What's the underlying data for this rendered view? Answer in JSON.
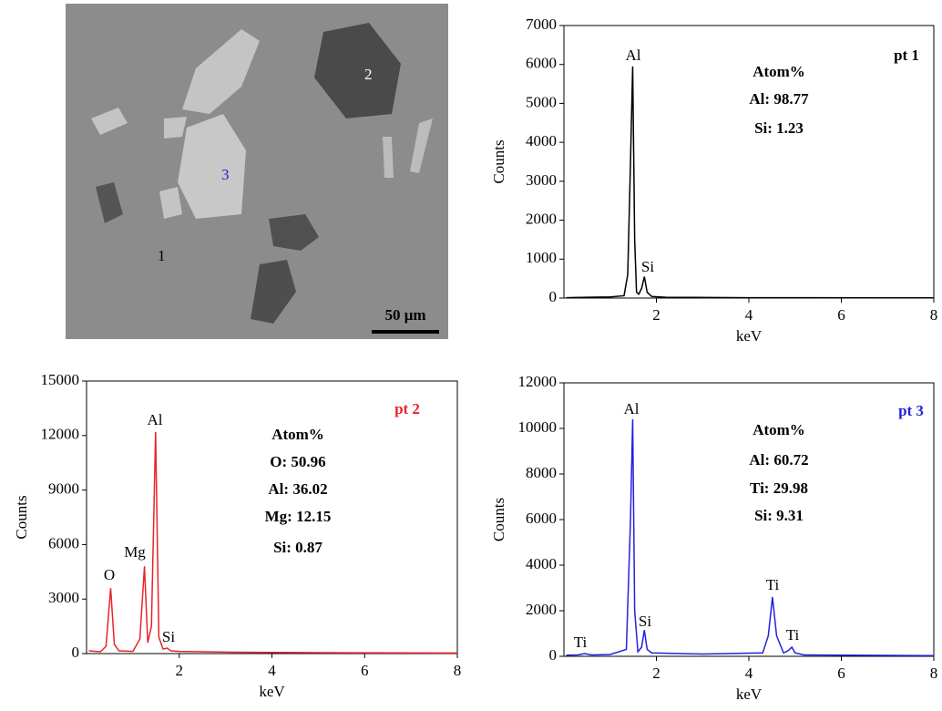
{
  "image": {
    "labels": [
      "1",
      "2",
      "3"
    ],
    "scale_bar": "50 μm"
  },
  "chart_data": [
    {
      "type": "line",
      "x_label": "keV",
      "y_label": "Counts",
      "color": "#000000",
      "x": [
        0.05,
        0.5,
        1.0,
        1.3,
        1.38,
        1.44,
        1.487,
        1.53,
        1.57,
        1.62,
        1.68,
        1.74,
        1.8,
        1.9,
        2.2,
        4.0,
        8.0
      ],
      "values": [
        10,
        20,
        30,
        60,
        600,
        3500,
        5950,
        1500,
        150,
        100,
        250,
        550,
        150,
        40,
        20,
        10,
        5
      ],
      "xlim": [
        0,
        8
      ],
      "xticks": [
        2,
        4,
        6,
        8
      ],
      "ylim": [
        0,
        7000
      ],
      "yticks": [
        0,
        1000,
        2000,
        3000,
        4000,
        5000,
        6000,
        7000
      ],
      "annotations": [
        "Al",
        "Si",
        "Atom%",
        "Al: 98.77",
        "Si: 1.23",
        "pt 1"
      ]
    },
    {
      "type": "line",
      "x_label": "keV",
      "y_label": "Counts",
      "color": "#e8242a",
      "x": [
        0.05,
        0.3,
        0.42,
        0.52,
        0.6,
        0.7,
        1.0,
        1.15,
        1.25,
        1.32,
        1.4,
        1.49,
        1.56,
        1.65,
        1.74,
        1.82,
        2.0,
        3.0,
        5.0,
        8.0
      ],
      "values": [
        150,
        100,
        400,
        3600,
        500,
        150,
        120,
        800,
        4800,
        600,
        1500,
        12200,
        900,
        250,
        300,
        150,
        120,
        80,
        50,
        30
      ],
      "xlim": [
        0,
        8
      ],
      "xticks": [
        2,
        4,
        6,
        8
      ],
      "ylim": [
        0,
        15000
      ],
      "yticks": [
        0,
        3000,
        6000,
        9000,
        12000,
        15000
      ],
      "annotations": [
        "O",
        "Mg",
        "Al",
        "Si",
        "Atom%",
        "O: 50.96",
        "Al: 36.02",
        "Mg: 12.15",
        "Si: 0.87",
        "pt 2"
      ]
    },
    {
      "type": "line",
      "x_label": "keV",
      "y_label": "Counts",
      "color": "#2222dd",
      "x": [
        0.05,
        0.3,
        0.45,
        0.6,
        1.0,
        1.35,
        1.44,
        1.487,
        1.53,
        1.6,
        1.68,
        1.74,
        1.8,
        1.9,
        3.0,
        4.3,
        4.42,
        4.51,
        4.6,
        4.75,
        4.85,
        4.93,
        5.0,
        5.2,
        8.0
      ],
      "values": [
        50,
        60,
        120,
        60,
        80,
        300,
        6000,
        10400,
        2000,
        200,
        400,
        1150,
        300,
        150,
        100,
        150,
        900,
        2600,
        900,
        150,
        250,
        400,
        150,
        60,
        30
      ],
      "xlim": [
        0,
        8
      ],
      "xticks": [
        2,
        4,
        6,
        8
      ],
      "ylim": [
        0,
        12000
      ],
      "yticks": [
        0,
        2000,
        4000,
        6000,
        8000,
        10000,
        12000
      ],
      "annotations": [
        "Ti",
        "Al",
        "Si",
        "Ti",
        "Ti",
        "Atom%",
        "Al: 60.72",
        "Ti: 29.98",
        "Si: 9.31",
        "pt 3"
      ]
    }
  ]
}
